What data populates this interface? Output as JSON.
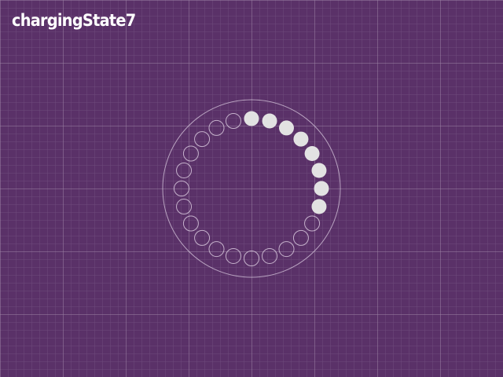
{
  "title": "chargingState7",
  "indicator": {
    "icon": "charging-progress-ring-icon",
    "total_dots": 24,
    "filled_dots": 8,
    "fill_color": "#e2e2e2",
    "outline_color": "#d8c8dd",
    "background_color": "#5a3168"
  }
}
